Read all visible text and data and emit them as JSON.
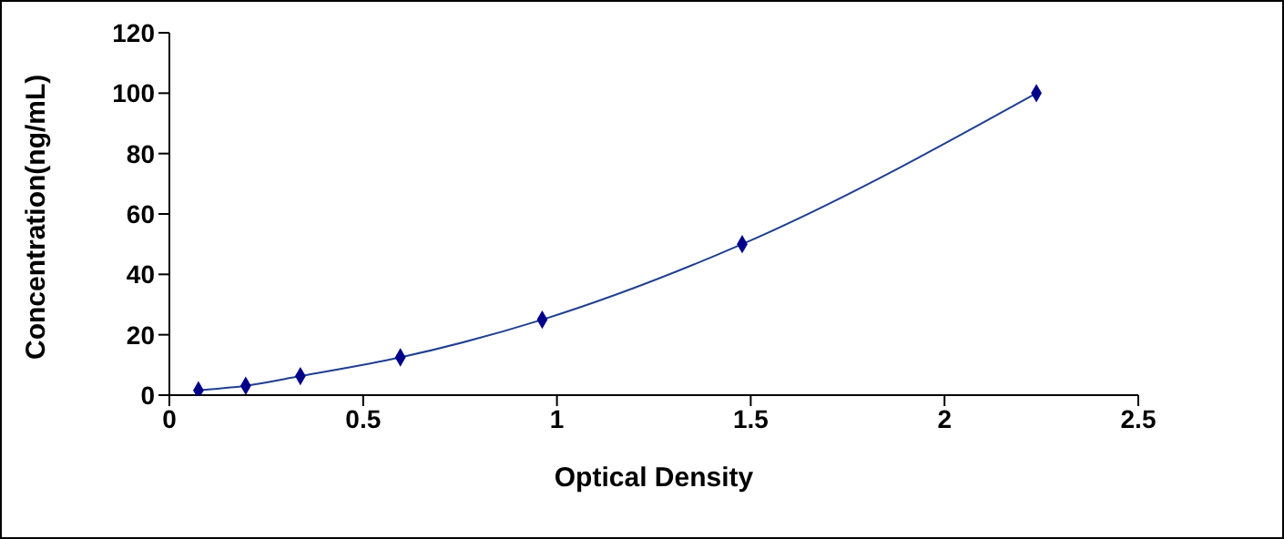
{
  "chart_data": {
    "type": "scatter",
    "xlabel": "Optical Density",
    "ylabel": "Concentration(ng/mL)",
    "xlim": [
      0,
      2.5
    ],
    "xticks": [
      0,
      0.5,
      1,
      1.5,
      2,
      2.5
    ],
    "ylim": [
      0,
      120
    ],
    "yticks": [
      0,
      20,
      40,
      60,
      80,
      100,
      120
    ],
    "grid": false,
    "series": [
      {
        "color": "#00008b",
        "marker": "diamond",
        "x": [
          0.075,
          0.197,
          0.338,
          0.596,
          0.962,
          1.478,
          2.237
        ],
        "values": [
          1.6,
          3.1,
          6.3,
          12.5,
          25,
          50,
          100
        ]
      },
      {
        "type": "line",
        "marker": "none",
        "color": "#1f3f8f",
        "x": [
          0.075,
          0.197,
          0.338,
          0.596,
          0.962,
          1.478,
          2.237
        ],
        "values": [
          1.6,
          3.1,
          6.3,
          12.5,
          25,
          50,
          100
        ]
      }
    ]
  }
}
